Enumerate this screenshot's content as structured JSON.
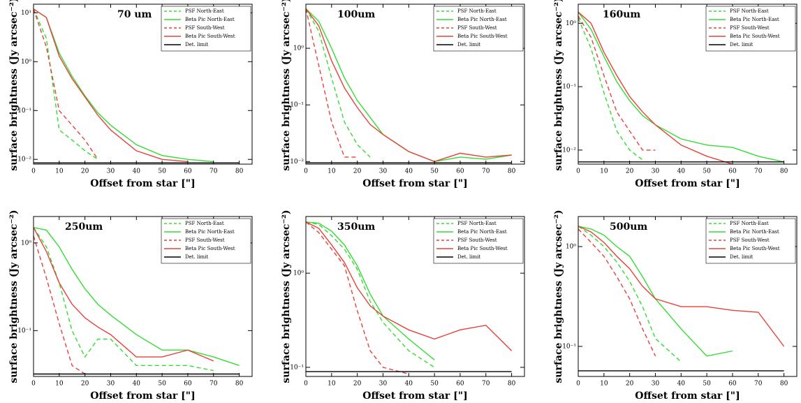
{
  "chart_data": [
    {
      "type": "line",
      "title": "70 um",
      "x_label": "Offset from star [\"]",
      "y_label": "surface brightness (Jy arcsec⁻²)",
      "log_y": true,
      "x": [
        0,
        5,
        10,
        15,
        20,
        25,
        30,
        40,
        50,
        60,
        70,
        80
      ],
      "xlim": [
        0,
        85
      ],
      "xticks": [
        0,
        10,
        20,
        30,
        40,
        50,
        60,
        70,
        80
      ],
      "ylim": [
        0.008,
        15
      ],
      "yticks": [
        {
          "value": 0.01,
          "label": "10⁻²"
        },
        {
          "value": 0.1,
          "label": "10⁻¹"
        },
        {
          "value": 1,
          "label": "10⁰"
        },
        {
          "value": 10,
          "label": "10¹"
        }
      ],
      "series": [
        {
          "name": "PSF North-East",
          "color": "#33dd33",
          "dashed": true,
          "values": [
            12,
            3,
            0.04,
            0.025,
            0.015,
            0.01,
            null,
            null,
            null,
            null,
            null,
            null
          ]
        },
        {
          "name": "Beta Pic North-East",
          "color": "#33dd33",
          "dashed": false,
          "values": [
            12,
            8,
            1.5,
            0.5,
            0.2,
            0.09,
            0.05,
            0.02,
            0.012,
            0.01,
            0.009,
            null
          ]
        },
        {
          "name": "PSF South-West",
          "color": "#e8403a",
          "dashed": true,
          "values": [
            12,
            2,
            0.1,
            0.05,
            0.025,
            0.01,
            null,
            null,
            null,
            null,
            null,
            null
          ]
        },
        {
          "name": "Beta Pic South-West",
          "color": "#e8403a",
          "dashed": false,
          "values": [
            12,
            8,
            1.3,
            0.45,
            0.19,
            0.08,
            0.04,
            0.015,
            0.01,
            0.009,
            null,
            null
          ]
        },
        {
          "name": "Det. limit",
          "color": "#000000",
          "dashed": false,
          "values": [
            0.0085,
            0.0085,
            0.0085,
            0.0085,
            0.0085,
            0.0085,
            0.0085,
            0.0085,
            0.0085,
            0.0085,
            0.0085,
            0.0085
          ]
        }
      ]
    },
    {
      "type": "line",
      "title": "100um",
      "x_label": "Offset from star [\"]",
      "y_label": "surface brightness (Jy arcsec⁻²)",
      "log_y": true,
      "x": [
        0,
        5,
        10,
        15,
        20,
        25,
        30,
        40,
        50,
        60,
        70,
        80
      ],
      "xlim": [
        0,
        85
      ],
      "xticks": [
        0,
        10,
        20,
        30,
        40,
        50,
        60,
        70,
        80
      ],
      "ylim": [
        0.009,
        6
      ],
      "yticks": [
        {
          "value": 0.01,
          "label": "10⁻²"
        },
        {
          "value": 0.1,
          "label": "10⁻¹"
        },
        {
          "value": 1,
          "label": "10⁰"
        }
      ],
      "series": [
        {
          "name": "PSF North-East",
          "color": "#33dd33",
          "dashed": true,
          "values": [
            5,
            2,
            0.3,
            0.05,
            0.02,
            0.012,
            null,
            null,
            null,
            null,
            null,
            null
          ]
        },
        {
          "name": "Beta Pic North-East",
          "color": "#33dd33",
          "dashed": false,
          "values": [
            5,
            3,
            1,
            0.3,
            0.12,
            0.06,
            0.03,
            0.015,
            0.01,
            0.012,
            0.011,
            0.013
          ]
        },
        {
          "name": "PSF South-West",
          "color": "#e8403a",
          "dashed": true,
          "values": [
            5,
            0.5,
            0.05,
            0.012,
            0.012,
            null,
            null,
            null,
            null,
            null,
            null,
            null
          ]
        },
        {
          "name": "Beta Pic South-West",
          "color": "#e8403a",
          "dashed": false,
          "values": [
            5,
            2.5,
            0.6,
            0.2,
            0.09,
            0.045,
            0.03,
            0.015,
            0.01,
            0.014,
            0.012,
            0.013
          ]
        },
        {
          "name": "Det. limit",
          "color": "#000000",
          "dashed": false,
          "values": [
            0.0095,
            0.0095,
            0.0095,
            0.0095,
            0.0095,
            0.0095,
            0.0095,
            0.0095,
            0.0095,
            0.0095,
            0.0095,
            0.0095
          ]
        }
      ]
    },
    {
      "type": "line",
      "title": "160um",
      "x_label": "Offset from star [\"]",
      "y_label": "surface brightness (Jy arcsec⁻²)",
      "log_y": true,
      "x": [
        0,
        5,
        10,
        15,
        20,
        25,
        30,
        40,
        50,
        60,
        70,
        80
      ],
      "xlim": [
        0,
        85
      ],
      "xticks": [
        0,
        10,
        20,
        30,
        40,
        50,
        60,
        70,
        80
      ],
      "ylim": [
        0.006,
        2
      ],
      "yticks": [
        {
          "value": 0.01,
          "label": "10⁻²"
        },
        {
          "value": 0.1,
          "label": "10⁻¹"
        },
        {
          "value": 1,
          "label": "10⁰"
        }
      ],
      "series": [
        {
          "name": "PSF North-East",
          "color": "#33dd33",
          "dashed": true,
          "values": [
            1.2,
            0.4,
            0.08,
            0.02,
            0.01,
            0.007,
            null,
            null,
            null,
            null,
            null,
            null
          ]
        },
        {
          "name": "Beta Pic North-East",
          "color": "#33dd33",
          "dashed": false,
          "values": [
            1.5,
            0.8,
            0.3,
            0.12,
            0.06,
            0.035,
            0.025,
            0.015,
            0.012,
            0.011,
            0.008,
            0.0065
          ]
        },
        {
          "name": "PSF South-West",
          "color": "#e8403a",
          "dashed": true,
          "values": [
            1.3,
            0.6,
            0.15,
            0.04,
            0.02,
            0.01,
            0.01,
            null,
            null,
            null,
            null,
            null
          ]
        },
        {
          "name": "Beta Pic South-West",
          "color": "#e8403a",
          "dashed": false,
          "values": [
            1.5,
            1,
            0.35,
            0.15,
            0.07,
            0.04,
            0.025,
            0.012,
            0.008,
            0.006,
            null,
            null
          ]
        },
        {
          "name": "Det. limit",
          "color": "#000000",
          "dashed": false,
          "values": [
            0.0065,
            0.0065,
            0.0065,
            0.0065,
            0.0065,
            0.0065,
            0.0065,
            0.0065,
            0.0065,
            0.0065,
            0.0065,
            0.0065
          ]
        }
      ]
    },
    {
      "type": "line",
      "title": "250um",
      "x_label": "Offset from star [\"]",
      "y_label": "surface brightness (Jy arcsec⁻²)",
      "log_y": true,
      "x": [
        0,
        5,
        10,
        15,
        20,
        25,
        30,
        40,
        50,
        60,
        70,
        80
      ],
      "xlim": [
        0,
        85
      ],
      "xticks": [
        0,
        10,
        20,
        30,
        40,
        50,
        60,
        70,
        80
      ],
      "ylim": [
        0.03,
        2
      ],
      "yticks": [
        {
          "value": 0.1,
          "label": "10⁻¹"
        },
        {
          "value": 1,
          "label": "10⁰"
        }
      ],
      "series": [
        {
          "name": "PSF North-East",
          "color": "#33dd33",
          "dashed": true,
          "values": [
            1.5,
            0.9,
            0.35,
            0.1,
            0.05,
            0.08,
            0.08,
            0.04,
            0.04,
            0.04,
            0.035,
            null
          ]
        },
        {
          "name": "Beta Pic North-East",
          "color": "#33dd33",
          "dashed": false,
          "values": [
            1.5,
            1.4,
            0.9,
            0.5,
            0.3,
            0.2,
            0.15,
            0.09,
            0.06,
            0.06,
            0.05,
            0.04
          ]
        },
        {
          "name": "PSF South-West",
          "color": "#e8403a",
          "dashed": true,
          "values": [
            1.2,
            0.4,
            0.12,
            0.04,
            0.032,
            null,
            null,
            null,
            null,
            null,
            null,
            null
          ]
        },
        {
          "name": "Beta Pic South-West",
          "color": "#e8403a",
          "dashed": false,
          "values": [
            1.5,
            0.8,
            0.35,
            0.2,
            0.14,
            0.11,
            0.09,
            0.05,
            0.05,
            0.06,
            0.045,
            null
          ]
        },
        {
          "name": "Det. limit",
          "color": "#000000",
          "dashed": false,
          "values": [
            0.032,
            0.032,
            0.032,
            0.032,
            0.032,
            0.032,
            0.032,
            0.032,
            0.032,
            0.032,
            0.032,
            0.032
          ]
        }
      ]
    },
    {
      "type": "line",
      "title": "350um",
      "x_label": "Offset from star [\"]",
      "y_label": "surface brightness (Jy arcsec⁻²)",
      "log_y": true,
      "x": [
        0,
        5,
        10,
        15,
        20,
        25,
        30,
        40,
        50,
        60,
        70,
        80
      ],
      "xlim": [
        0,
        85
      ],
      "xticks": [
        0,
        10,
        20,
        30,
        40,
        50,
        60,
        70,
        80
      ],
      "ylim": [
        0.08,
        4
      ],
      "yticks": [
        {
          "value": 0.1,
          "label": "10⁻¹"
        },
        {
          "value": 1,
          "label": "10⁰"
        }
      ],
      "series": [
        {
          "name": "PSF North-East",
          "color": "#33dd33",
          "dashed": true,
          "values": [
            3.5,
            3.3,
            2.5,
            1.8,
            1.1,
            0.5,
            0.3,
            0.15,
            0.1,
            null,
            null,
            null
          ]
        },
        {
          "name": "Beta Pic North-East",
          "color": "#33dd33",
          "dashed": false,
          "values": [
            3.5,
            3.4,
            2.8,
            2,
            1.2,
            0.6,
            0.35,
            0.2,
            0.12,
            null,
            null,
            null
          ]
        },
        {
          "name": "PSF South-West",
          "color": "#e8403a",
          "dashed": true,
          "values": [
            3.5,
            2.7,
            1.8,
            1.2,
            0.4,
            0.15,
            0.1,
            0.085,
            null,
            null,
            null,
            null
          ]
        },
        {
          "name": "Beta Pic South-West",
          "color": "#e8403a",
          "dashed": false,
          "values": [
            3.5,
            3,
            2,
            1.3,
            0.7,
            0.45,
            0.35,
            0.25,
            0.2,
            0.25,
            0.28,
            0.15
          ]
        },
        {
          "name": "Det. limit",
          "color": "#000000",
          "dashed": false,
          "values": [
            0.09,
            0.09,
            0.09,
            0.09,
            0.09,
            0.09,
            0.09,
            0.09,
            0.09,
            0.09,
            0.09,
            0.09
          ]
        }
      ]
    },
    {
      "type": "line",
      "title": "500um",
      "x_label": "Offset from star [\"]",
      "y_label": "surface brightness (Jy arcsec⁻²)",
      "log_y": true,
      "x": [
        0,
        5,
        10,
        15,
        20,
        25,
        30,
        40,
        50,
        60,
        70,
        80
      ],
      "xlim": [
        0,
        85
      ],
      "xticks": [
        0,
        10,
        20,
        30,
        40,
        50,
        60,
        70,
        80
      ],
      "ylim": [
        0.05,
        2
      ],
      "yticks": [
        {
          "value": 0.1,
          "label": "10⁻¹"
        },
        {
          "value": 1,
          "label": "10⁰"
        }
      ],
      "series": [
        {
          "name": "PSF North-East",
          "color": "#33dd33",
          "dashed": true,
          "values": [
            1.6,
            1.3,
            1,
            0.7,
            0.45,
            0.25,
            0.12,
            0.07,
            null,
            null,
            null,
            null
          ]
        },
        {
          "name": "Beta Pic North-East",
          "color": "#33dd33",
          "dashed": false,
          "values": [
            1.6,
            1.5,
            1.3,
            1,
            0.8,
            0.5,
            0.3,
            0.15,
            0.08,
            0.09,
            null,
            null
          ]
        },
        {
          "name": "PSF South-West",
          "color": "#e8403a",
          "dashed": true,
          "values": [
            1.5,
            1.1,
            0.8,
            0.5,
            0.3,
            0.15,
            0.08,
            null,
            null,
            null,
            null,
            null
          ]
        },
        {
          "name": "Beta Pic South-West",
          "color": "#e8403a",
          "dashed": false,
          "values": [
            1.6,
            1.4,
            1.1,
            0.8,
            0.6,
            0.4,
            0.3,
            0.25,
            0.25,
            0.23,
            0.22,
            0.1
          ]
        },
        {
          "name": "Det. limit",
          "color": "#000000",
          "dashed": false,
          "values": [
            0.057,
            0.057,
            0.057,
            0.057,
            0.057,
            0.057,
            0.057,
            0.057,
            0.057,
            0.057,
            0.057,
            0.057
          ]
        }
      ]
    }
  ]
}
